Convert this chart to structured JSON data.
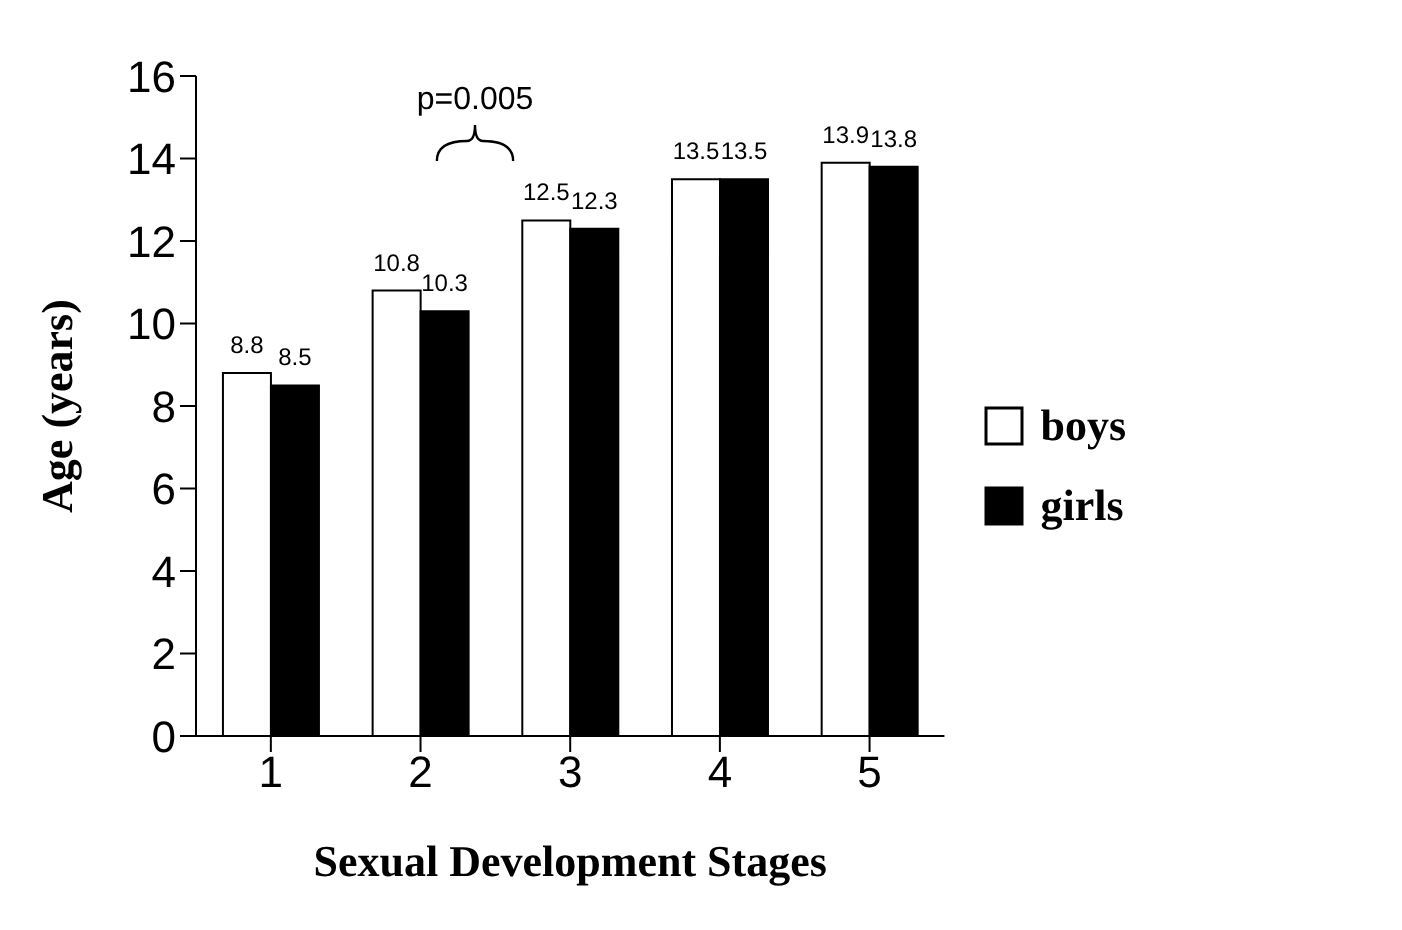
{
  "chart_data": {
    "type": "bar",
    "xlabel": "Sexual Development Stages",
    "ylabel": "Age (years)",
    "categories": [
      "1",
      "2",
      "3",
      "4",
      "5"
    ],
    "series": [
      {
        "name": "boys",
        "color": "#ffffff",
        "values": [
          8.8,
          10.8,
          12.5,
          13.5,
          13.9
        ]
      },
      {
        "name": "girls",
        "color": "#000000",
        "values": [
          8.5,
          10.3,
          12.3,
          13.5,
          13.8
        ]
      }
    ],
    "ylim": [
      0,
      16
    ],
    "yticks": [
      0,
      2,
      4,
      6,
      8,
      10,
      12,
      14,
      16
    ],
    "grid": false,
    "legend": "right",
    "data_labels": true,
    "annotations": [
      "p=0.005"
    ]
  }
}
